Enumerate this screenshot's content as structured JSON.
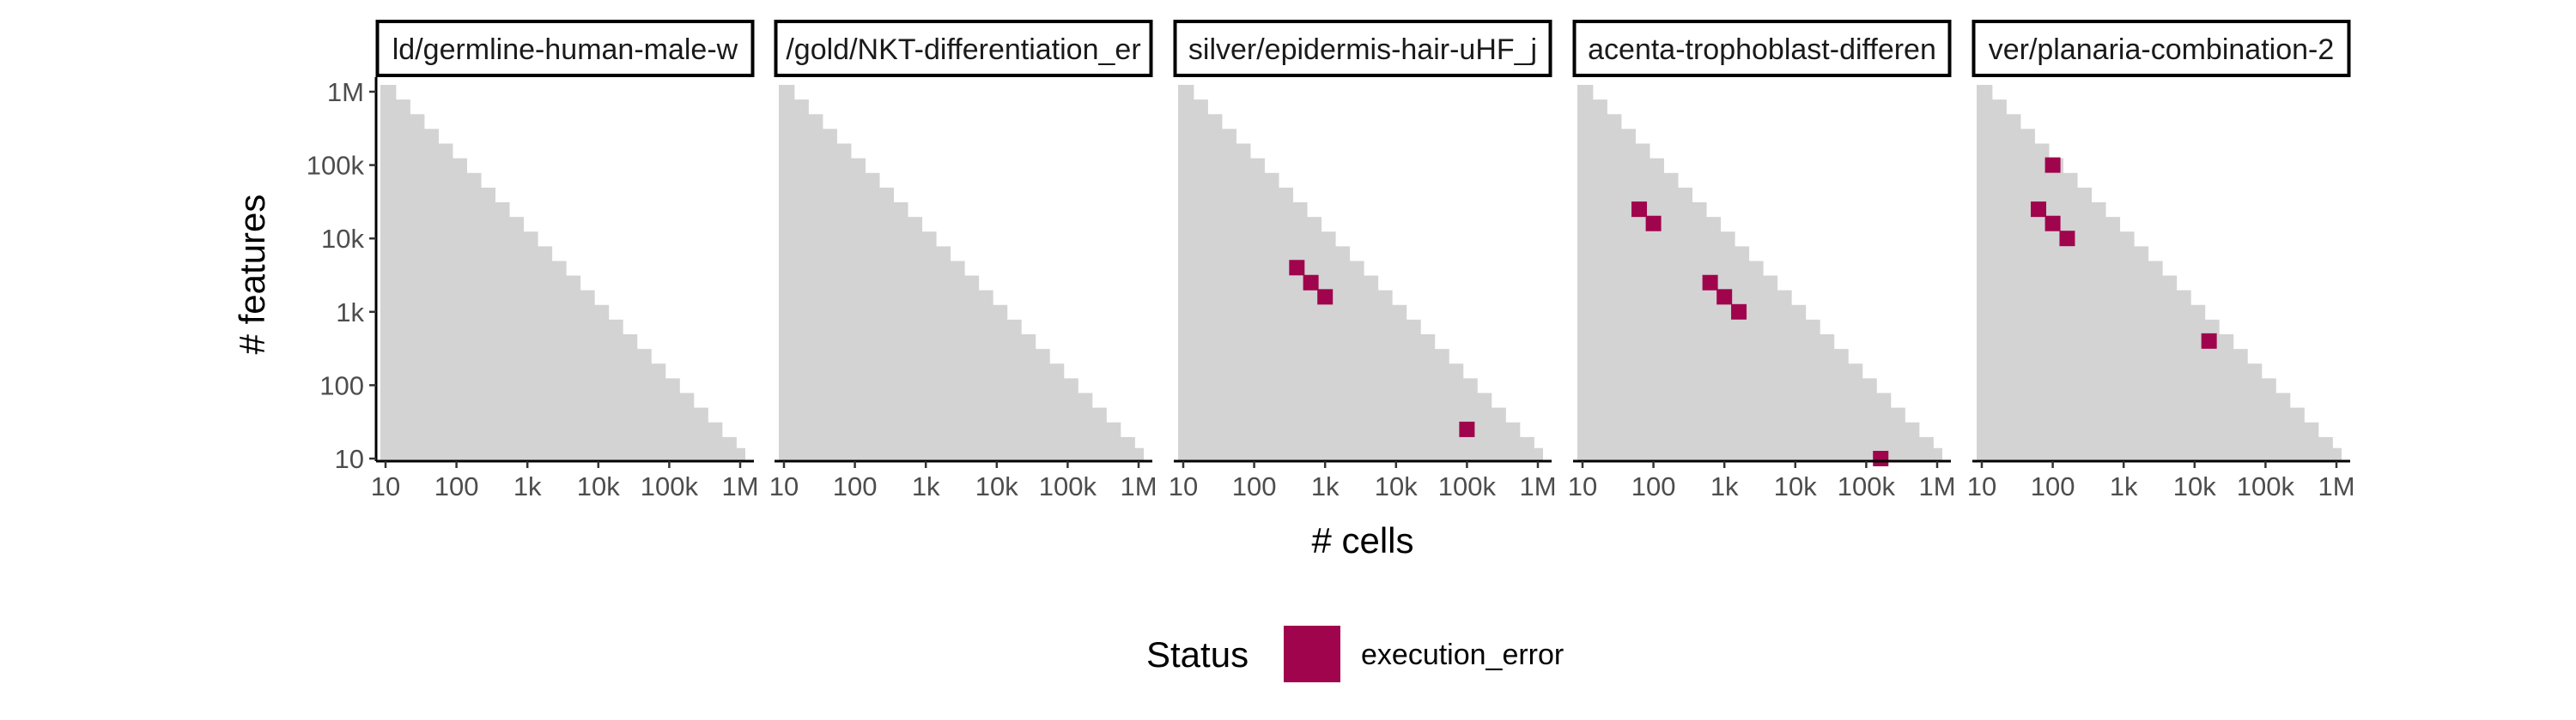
{
  "chart_data": {
    "type": "heatmap",
    "xlabel": "# cells",
    "ylabel": "# features",
    "x_scale": "log10",
    "y_scale": "log10",
    "xlim": [
      10,
      1000000
    ],
    "ylim": [
      10,
      1000000
    ],
    "x_ticks": [
      {
        "value": 10,
        "label": "10"
      },
      {
        "value": 100,
        "label": "100"
      },
      {
        "value": 1000,
        "label": "1k"
      },
      {
        "value": 10000,
        "label": "10k"
      },
      {
        "value": 100000,
        "label": "100k"
      },
      {
        "value": 1000000,
        "label": "1M"
      }
    ],
    "y_ticks": [
      {
        "value": 10,
        "label": "10"
      },
      {
        "value": 100,
        "label": "100"
      },
      {
        "value": 1000,
        "label": "1k"
      },
      {
        "value": 10000,
        "label": "10k"
      },
      {
        "value": 100000,
        "label": "100k"
      },
      {
        "value": 1000000,
        "label": "1M"
      }
    ],
    "background_region_color": "#d3d3d3",
    "legend": {
      "title": "Status",
      "position": "bottom",
      "entries": [
        {
          "label": "execution_error",
          "color": "#a0044d"
        }
      ]
    },
    "panels": [
      {
        "label": "ld/germline-human-male-w",
        "points": []
      },
      {
        "label": "/gold/NKT-differentiation_er",
        "points": []
      },
      {
        "label": "silver/epidermis-hair-uHF_j",
        "points": [
          {
            "x": 400,
            "y": 4000,
            "status": "execution_error"
          },
          {
            "x": 630,
            "y": 2500,
            "status": "execution_error"
          },
          {
            "x": 1000,
            "y": 1600,
            "status": "execution_error"
          },
          {
            "x": 100000,
            "y": 25,
            "status": "execution_error"
          }
        ]
      },
      {
        "label": "acenta-trophoblast-differen",
        "points": [
          {
            "x": 63,
            "y": 25000,
            "status": "execution_error"
          },
          {
            "x": 100,
            "y": 16000,
            "status": "execution_error"
          },
          {
            "x": 630,
            "y": 2500,
            "status": "execution_error"
          },
          {
            "x": 1000,
            "y": 1600,
            "status": "execution_error"
          },
          {
            "x": 1600,
            "y": 1000,
            "status": "execution_error"
          },
          {
            "x": 160000,
            "y": 10,
            "status": "execution_error"
          }
        ]
      },
      {
        "label": "ver/planaria-combination-2",
        "points": [
          {
            "x": 100,
            "y": 100000,
            "status": "execution_error"
          },
          {
            "x": 63,
            "y": 25000,
            "status": "execution_error"
          },
          {
            "x": 100,
            "y": 16000,
            "status": "execution_error"
          },
          {
            "x": 160,
            "y": 10000,
            "status": "execution_error"
          },
          {
            "x": 16000,
            "y": 400,
            "status": "execution_error"
          }
        ]
      }
    ]
  }
}
